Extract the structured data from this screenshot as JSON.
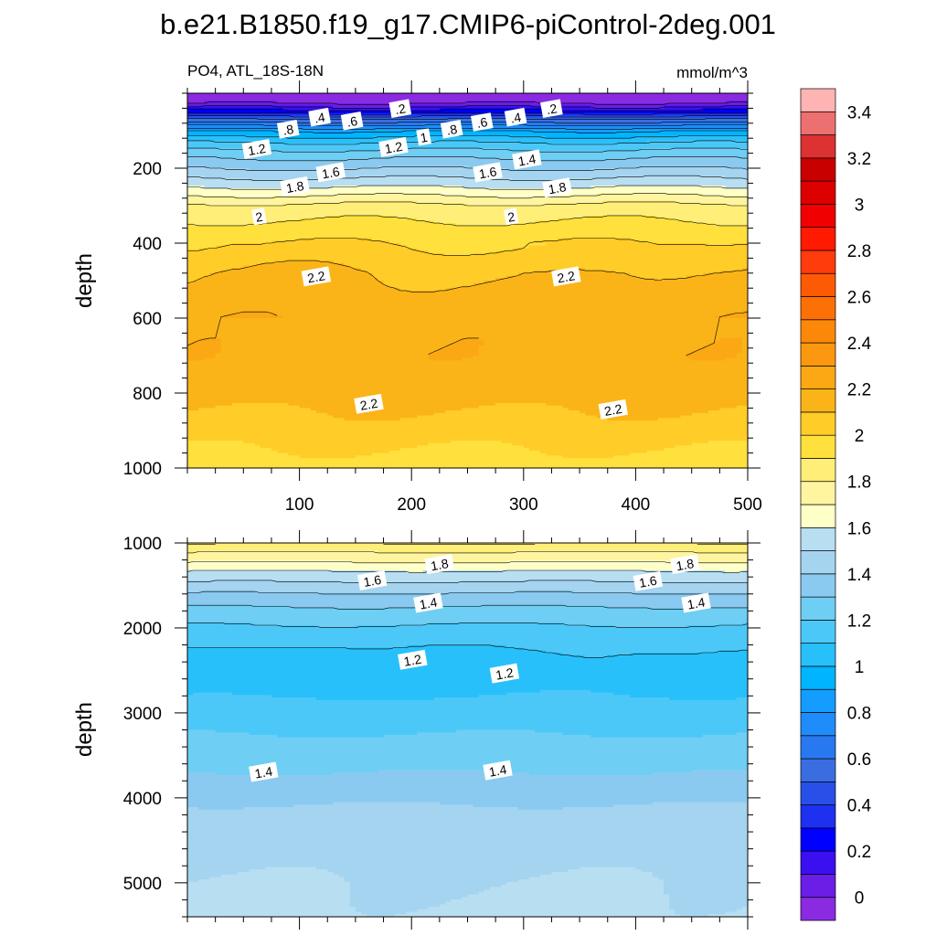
{
  "figure": {
    "title": "b.e21.B1850.f19_g17.CMIP6-piControl-2deg.001",
    "panel_label": "PO4, ATL_18S-18N",
    "units": "mmol/m^3"
  },
  "colorbar": {
    "levels": [
      0,
      0.1,
      0.2,
      0.3,
      0.4,
      0.5,
      0.6,
      0.7,
      0.8,
      0.9,
      1.0,
      1.1,
      1.2,
      1.3,
      1.4,
      1.5,
      1.6,
      1.7,
      1.8,
      1.9,
      2.0,
      2.1,
      2.2,
      2.3,
      2.4,
      2.5,
      2.6,
      2.7,
      2.8,
      2.9,
      3.0,
      3.1,
      3.2,
      3.3,
      3.4,
      3.5
    ],
    "tick_labels": [
      "0",
      "0.2",
      "0.4",
      "0.6",
      "0.8",
      "1",
      "1.2",
      "1.4",
      "1.6",
      "1.8",
      "2",
      "2.2",
      "2.4",
      "2.6",
      "2.8",
      "3",
      "3.2",
      "3.4"
    ],
    "colors": [
      "#8a2be2",
      "#6a1ee6",
      "#3a10f0",
      "#0000ff",
      "#1e30f0",
      "#2850e8",
      "#3a6ee0",
      "#2878f0",
      "#1e8cfa",
      "#149cff",
      "#00b4ff",
      "#28c0fa",
      "#4cc8f8",
      "#6ecef4",
      "#8acaf0",
      "#a4d4f0",
      "#b8def2",
      "#ffffc8",
      "#fff5a0",
      "#ffee78",
      "#ffe03c",
      "#ffcc28",
      "#fbb418",
      "#fba814",
      "#fb9810",
      "#fc880a",
      "#fc7006",
      "#fc5a04",
      "#ff3c0c",
      "#ff1a00",
      "#f00000",
      "#dc0000",
      "#c80000",
      "#dc3232",
      "#ec7070",
      "#ffb4b4"
    ]
  },
  "chart_data": [
    {
      "type": "heatmap",
      "subtype": "filled contour",
      "panel": "upper (0-1000 m)",
      "title": "PO4, ATL_18S-18N",
      "units": "mmol/m^3",
      "xlabel": "",
      "ylabel": "depth",
      "xlim": [
        0,
        500
      ],
      "ylim": [
        1000,
        0
      ],
      "x_ticks": [
        100,
        200,
        300,
        400,
        500
      ],
      "y_ticks": [
        200,
        400,
        600,
        800,
        1000
      ],
      "contour_interval": 0.1,
      "grid": false,
      "contour_labels": [
        {
          "text": ".2",
          "x": 190,
          "y": 42
        },
        {
          "text": ".2",
          "x": 325,
          "y": 42
        },
        {
          "text": ".4",
          "x": 118,
          "y": 65
        },
        {
          "text": ".4",
          "x": 293,
          "y": 65
        },
        {
          "text": ".6",
          "x": 147,
          "y": 75
        },
        {
          "text": ".6",
          "x": 263,
          "y": 78
        },
        {
          "text": ".8",
          "x": 90,
          "y": 97
        },
        {
          "text": ".8",
          "x": 236,
          "y": 97
        },
        {
          "text": "1",
          "x": 211,
          "y": 118
        },
        {
          "text": "1.2",
          "x": 62,
          "y": 150
        },
        {
          "text": "1.2",
          "x": 184,
          "y": 145
        },
        {
          "text": "1.4",
          "x": 303,
          "y": 178
        },
        {
          "text": "1.6",
          "x": 128,
          "y": 212
        },
        {
          "text": "1.6",
          "x": 268,
          "y": 212
        },
        {
          "text": "1.8",
          "x": 96,
          "y": 250
        },
        {
          "text": "1.8",
          "x": 330,
          "y": 253
        },
        {
          "text": "2",
          "x": 64,
          "y": 330
        },
        {
          "text": "2",
          "x": 289,
          "y": 330
        },
        {
          "text": "2.2",
          "x": 115,
          "y": 490
        },
        {
          "text": "2.2",
          "x": 338,
          "y": 490
        },
        {
          "text": "2.2",
          "x": 162,
          "y": 830
        },
        {
          "text": "2.2",
          "x": 380,
          "y": 845
        }
      ]
    },
    {
      "type": "heatmap",
      "subtype": "filled contour",
      "panel": "lower (1000-5400 m)",
      "xlabel": "",
      "ylabel": "depth",
      "xlim": [
        0,
        500
      ],
      "ylim": [
        5400,
        1000
      ],
      "x_ticks": [
        100,
        200,
        300,
        400,
        500
      ],
      "y_ticks": [
        1000,
        2000,
        3000,
        4000,
        5000
      ],
      "contour_interval": 0.1,
      "grid": false,
      "contour_labels": [
        {
          "text": "1.8",
          "x": 225,
          "y": 1255
        },
        {
          "text": "1.8",
          "x": 444,
          "y": 1255
        },
        {
          "text": "1.6",
          "x": 165,
          "y": 1445
        },
        {
          "text": "1.6",
          "x": 411,
          "y": 1455
        },
        {
          "text": "1.4",
          "x": 215,
          "y": 1710
        },
        {
          "text": "1.4",
          "x": 454,
          "y": 1710
        },
        {
          "text": "1.2",
          "x": 201,
          "y": 2380
        },
        {
          "text": "1.2",
          "x": 283,
          "y": 2540
        },
        {
          "text": "1.4",
          "x": 68,
          "y": 3700
        },
        {
          "text": "1.4",
          "x": 277,
          "y": 3680
        }
      ]
    }
  ]
}
